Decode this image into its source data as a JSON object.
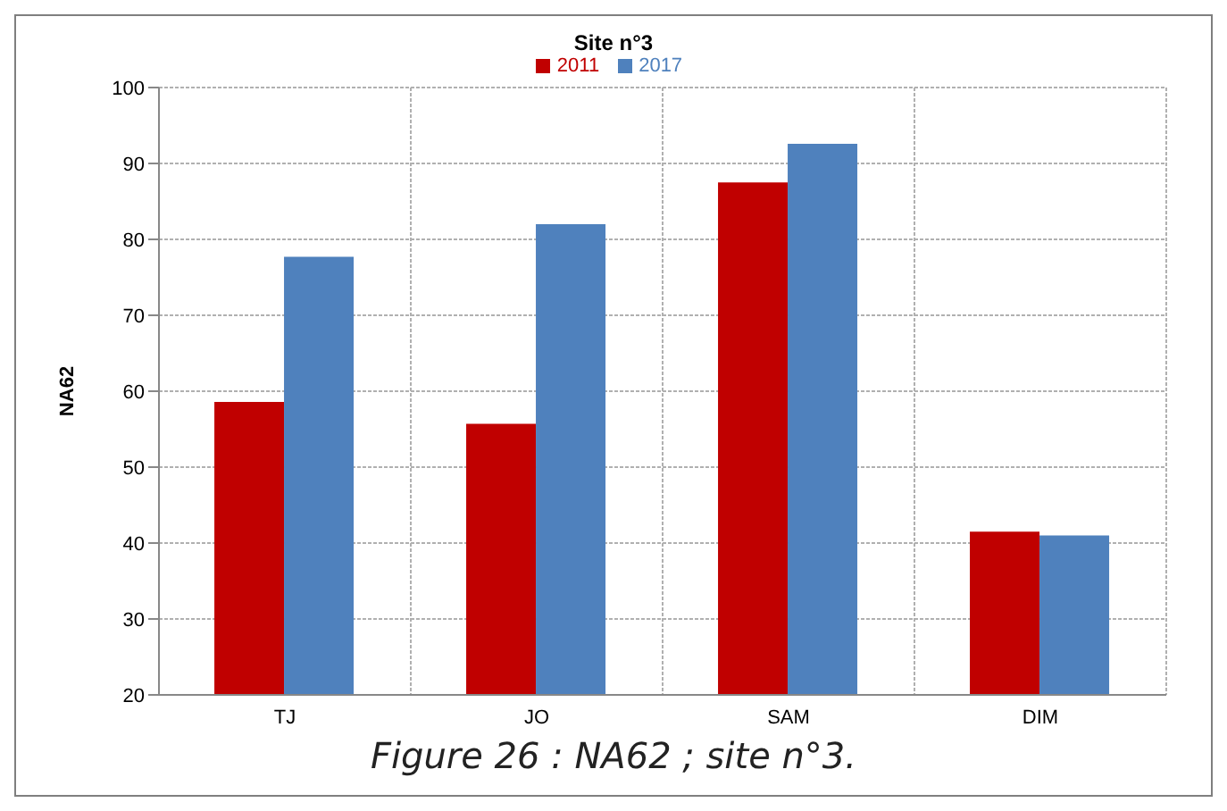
{
  "chart_data": {
    "type": "bar",
    "title": "Site n°3",
    "ylabel": "NA62",
    "categories": [
      "TJ",
      "JO",
      "SAM",
      "DIM"
    ],
    "series": [
      {
        "name": "2011",
        "color": "#c00000",
        "values": [
          58.6,
          55.7,
          87.5,
          41.5
        ]
      },
      {
        "name": "2017",
        "color": "#4f81bd",
        "values": [
          77.7,
          82,
          92.6,
          41
        ]
      }
    ],
    "ylim": [
      20,
      100
    ],
    "yticks": [
      20,
      30,
      40,
      50,
      60,
      70,
      80,
      90,
      100
    ],
    "grid": true,
    "legend": "top",
    "annotations": [
      "Figure 26 : NA62 ; site n°3."
    ]
  }
}
